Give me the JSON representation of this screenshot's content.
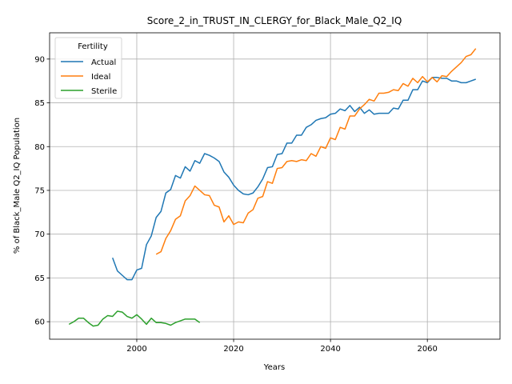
{
  "chart_data": {
    "type": "line",
    "title": "Score_2_in_TRUST_IN_CLERGY_for_Black_Male_Q2_IQ",
    "xlabel": "Years",
    "ylabel": "% of Black_Male Q2_IQ Population",
    "xlim": [
      1982,
      2075
    ],
    "ylim": [
      58,
      93
    ],
    "xticks": [
      2000,
      2020,
      2040,
      2060
    ],
    "yticks": [
      60,
      65,
      70,
      75,
      80,
      85,
      90
    ],
    "grid": true,
    "legend": {
      "title": "Fertility",
      "placement": "upper-left"
    },
    "series": [
      {
        "name": "Actual",
        "color": "#1f77b4",
        "x": [
          1995,
          1996,
          1997,
          1998,
          1999,
          2000,
          2001,
          2002,
          2003,
          2004,
          2005,
          2006,
          2007,
          2008,
          2009,
          2010,
          2011,
          2012,
          2013,
          2014,
          2015,
          2016,
          2017,
          2018,
          2019,
          2020,
          2021,
          2022,
          2023,
          2024,
          2025,
          2026,
          2027,
          2028,
          2029,
          2030,
          2031,
          2032,
          2033,
          2034,
          2035,
          2036,
          2037,
          2038,
          2039,
          2040,
          2041,
          2042,
          2043,
          2044,
          2045,
          2046,
          2047,
          2048,
          2049,
          2050,
          2051,
          2052,
          2053,
          2054,
          2055,
          2056,
          2057,
          2058,
          2059,
          2060,
          2061,
          2062,
          2063,
          2064,
          2065,
          2066,
          2067,
          2068,
          2069,
          2070
        ],
        "values": [
          67.3,
          65.8,
          65.3,
          64.8,
          64.8,
          65.9,
          66.1,
          68.8,
          69.8,
          71.9,
          72.6,
          74.7,
          75.1,
          76.7,
          76.4,
          77.7,
          77.2,
          78.4,
          78.1,
          79.2,
          79.0,
          78.7,
          78.3,
          77.1,
          76.5,
          75.6,
          75.0,
          74.6,
          74.5,
          74.7,
          75.4,
          76.3,
          77.6,
          77.7,
          79.1,
          79.2,
          80.4,
          80.4,
          81.3,
          81.3,
          82.2,
          82.5,
          83.0,
          83.2,
          83.3,
          83.7,
          83.8,
          84.3,
          84.1,
          84.7,
          84.0,
          84.5,
          83.8,
          84.2,
          83.7,
          83.8,
          83.8,
          83.8,
          84.4,
          84.3,
          85.3,
          85.3,
          86.5,
          86.5,
          87.5,
          87.3,
          87.9,
          87.9,
          87.8,
          87.8,
          87.5,
          87.5,
          87.3,
          87.3,
          87.5,
          87.7
        ]
      },
      {
        "name": "Ideal",
        "color": "#ff7f0e",
        "x": [
          2004,
          2005,
          2006,
          2007,
          2008,
          2009,
          2010,
          2011,
          2012,
          2013,
          2014,
          2015,
          2016,
          2017,
          2018,
          2019,
          2020,
          2021,
          2022,
          2023,
          2024,
          2025,
          2026,
          2027,
          2028,
          2029,
          2030,
          2031,
          2032,
          2033,
          2034,
          2035,
          2036,
          2037,
          2038,
          2039,
          2040,
          2041,
          2042,
          2043,
          2044,
          2045,
          2046,
          2047,
          2048,
          2049,
          2050,
          2051,
          2052,
          2053,
          2054,
          2055,
          2056,
          2057,
          2058,
          2059,
          2060,
          2061,
          2062,
          2063,
          2064,
          2065,
          2066,
          2067,
          2068,
          2069,
          2070
        ],
        "values": [
          67.7,
          68.0,
          69.5,
          70.4,
          71.7,
          72.1,
          73.8,
          74.4,
          75.5,
          75.0,
          74.5,
          74.4,
          73.3,
          73.1,
          71.4,
          72.1,
          71.1,
          71.4,
          71.3,
          72.4,
          72.8,
          74.1,
          74.3,
          76.0,
          75.8,
          77.5,
          77.6,
          78.3,
          78.4,
          78.3,
          78.5,
          78.4,
          79.2,
          78.9,
          80.0,
          79.8,
          81.0,
          80.8,
          82.2,
          82.0,
          83.5,
          83.5,
          84.3,
          84.8,
          85.4,
          85.2,
          86.1,
          86.1,
          86.2,
          86.5,
          86.4,
          87.2,
          86.9,
          87.8,
          87.3,
          88.0,
          87.4,
          87.9,
          87.4,
          88.1,
          88.0,
          88.6,
          89.1,
          89.6,
          90.3,
          90.5,
          91.2
        ]
      },
      {
        "name": "Sterile",
        "color": "#2ca02c",
        "x": [
          1986,
          1987,
          1988,
          1989,
          1990,
          1991,
          1992,
          1993,
          1994,
          1995,
          1996,
          1997,
          1998,
          1999,
          2000,
          2001,
          2002,
          2003,
          2004,
          2005,
          2006,
          2007,
          2008,
          2009,
          2010,
          2011,
          2012,
          2013
        ],
        "values": [
          59.7,
          60.0,
          60.4,
          60.4,
          59.9,
          59.5,
          59.6,
          60.3,
          60.7,
          60.6,
          61.2,
          61.1,
          60.6,
          60.4,
          60.8,
          60.3,
          59.7,
          60.4,
          59.9,
          59.9,
          59.8,
          59.6,
          59.9,
          60.1,
          60.3,
          60.3,
          60.3,
          59.9
        ]
      }
    ]
  }
}
